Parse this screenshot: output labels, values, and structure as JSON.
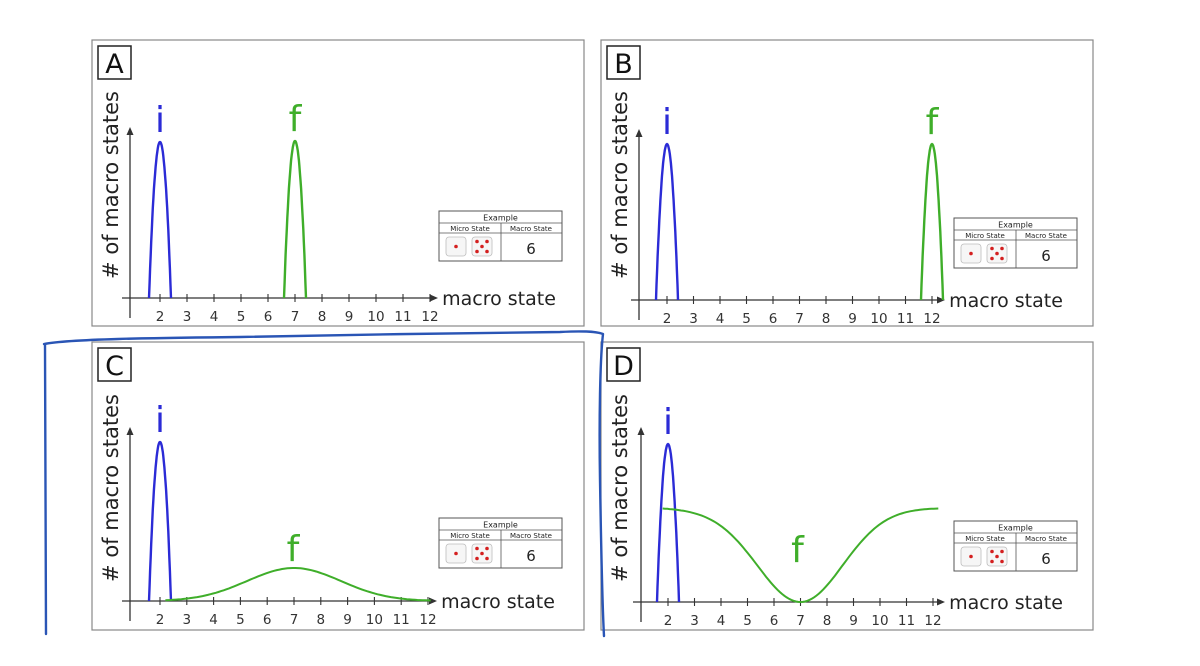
{
  "panels": [
    {
      "id": "A",
      "letter": "A",
      "i_label": "i",
      "f_label": "f",
      "ylabel": "# of macro states",
      "xlabel": "macro state",
      "ticks": [
        "2",
        "3",
        "4",
        "5",
        "6",
        "7",
        "8",
        "9",
        "10",
        "11",
        "12"
      ],
      "f_shape": "narrow peak at 7"
    },
    {
      "id": "B",
      "letter": "B",
      "i_label": "i",
      "f_label": "f",
      "ylabel": "# of macro states",
      "xlabel": "macro state",
      "ticks": [
        "2",
        "3",
        "4",
        "5",
        "6",
        "7",
        "8",
        "9",
        "10",
        "11",
        "12"
      ],
      "f_shape": "narrow peak at 12"
    },
    {
      "id": "C",
      "letter": "C",
      "i_label": "i",
      "f_label": "f",
      "ylabel": "# of macro states",
      "xlabel": "macro state",
      "ticks": [
        "2",
        "3",
        "4",
        "5",
        "6",
        "7",
        "8",
        "9",
        "10",
        "11",
        "12"
      ],
      "f_shape": "broad low bump centered at 7"
    },
    {
      "id": "D",
      "letter": "D",
      "i_label": "i",
      "f_label": "f",
      "ylabel": "# of macro states",
      "xlabel": "macro state",
      "ticks": [
        "2",
        "3",
        "4",
        "5",
        "6",
        "7",
        "8",
        "9",
        "10",
        "11",
        "12"
      ],
      "f_shape": "inverted bell with minimum at 7"
    }
  ],
  "example_table": {
    "title": "Example",
    "col1": "Micro State",
    "col2": "Macro State",
    "value": "6"
  },
  "colors": {
    "initial": "#2b2bd6",
    "final": "#3fae2a",
    "axis": "#333333",
    "frame": "#888888",
    "annotation": "#2a55b5",
    "die_pip": "#d42020"
  }
}
